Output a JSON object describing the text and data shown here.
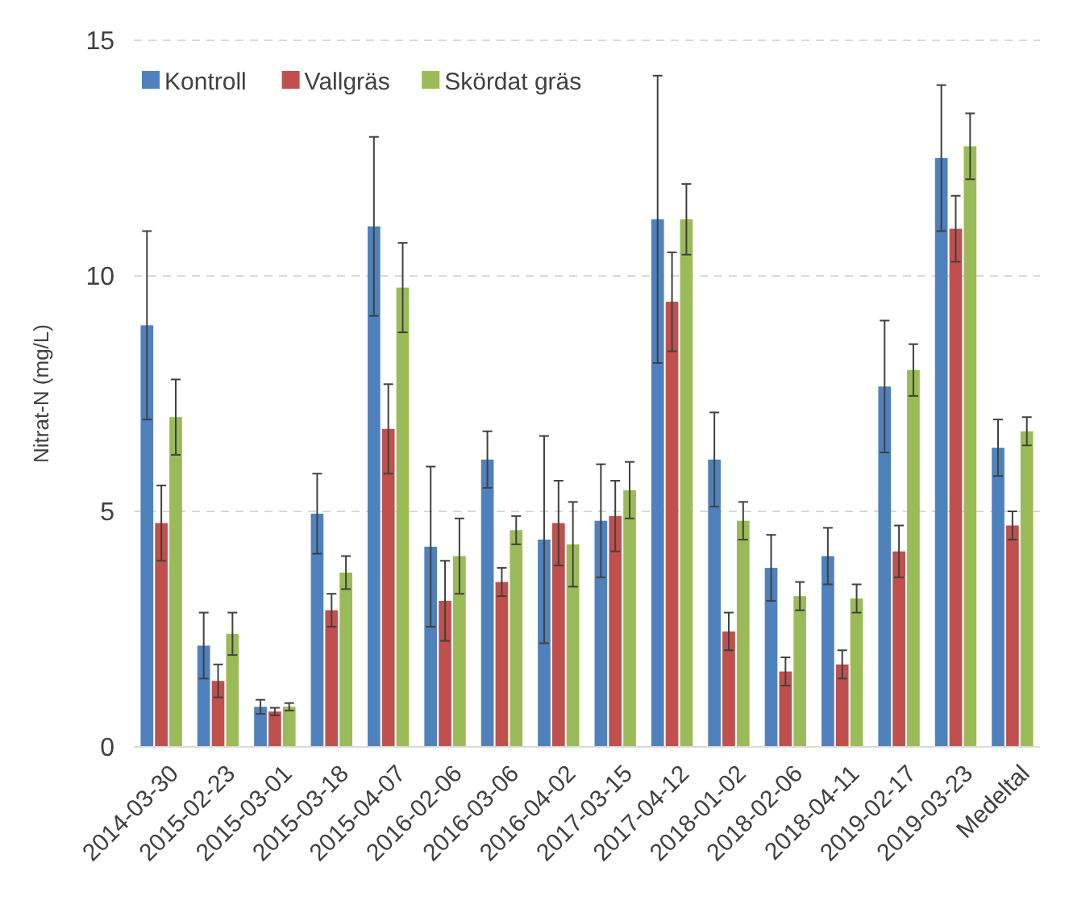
{
  "chart_data": {
    "type": "bar",
    "ylabel": "Nitrat-N (mg/L)",
    "categories": [
      "2014-03-30",
      "2015-02-23",
      "2015-03-01",
      "2015-03-18",
      "2015-04-07",
      "2016-02-06",
      "2016-03-06",
      "2016-04-02",
      "2017-03-15",
      "2017-04-12",
      "2018-01-02",
      "2018-02-06",
      "2018-04-11",
      "2019-02-17",
      "2019-03-23",
      "Medeltal"
    ],
    "series": [
      {
        "name": "Kontroll",
        "color": "#4f81bd",
        "values": [
          8.95,
          2.15,
          0.85,
          4.95,
          11.05,
          4.25,
          6.1,
          4.4,
          4.8,
          11.2,
          6.1,
          3.8,
          4.05,
          7.65,
          12.5,
          6.35
        ],
        "errors": [
          2.0,
          0.7,
          0.15,
          0.85,
          1.9,
          1.7,
          0.6,
          2.2,
          1.2,
          3.05,
          1.0,
          0.7,
          0.6,
          1.4,
          1.55,
          0.6
        ]
      },
      {
        "name": "Vallgräs",
        "color": "#c0504d",
        "values": [
          4.75,
          1.4,
          0.75,
          2.9,
          6.75,
          3.1,
          3.5,
          4.75,
          4.9,
          9.45,
          2.45,
          1.6,
          1.75,
          4.15,
          11.0,
          4.7
        ],
        "errors": [
          0.8,
          0.35,
          0.08,
          0.35,
          0.95,
          0.85,
          0.3,
          0.9,
          0.75,
          1.05,
          0.4,
          0.3,
          0.3,
          0.55,
          0.7,
          0.3
        ]
      },
      {
        "name": "Skördat gräs",
        "color": "#9bbb59",
        "values": [
          7.0,
          2.4,
          0.85,
          3.7,
          9.75,
          4.05,
          4.6,
          4.3,
          5.45,
          11.2,
          4.8,
          3.2,
          3.15,
          8.0,
          12.75,
          6.7
        ],
        "errors": [
          0.8,
          0.45,
          0.08,
          0.35,
          0.95,
          0.8,
          0.3,
          0.9,
          0.6,
          0.75,
          0.4,
          0.3,
          0.3,
          0.55,
          0.7,
          0.3
        ]
      }
    ],
    "ylim": [
      0,
      15
    ],
    "yticks": [
      0,
      5,
      10,
      15
    ],
    "grid": "y",
    "legend": "top left"
  }
}
